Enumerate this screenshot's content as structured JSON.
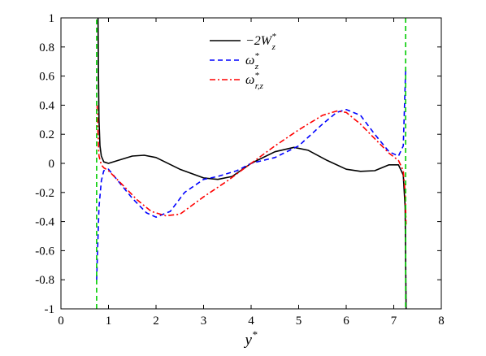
{
  "chart_data": {
    "type": "line",
    "title": "",
    "xlabel": "y*",
    "ylabel": "",
    "xlim": [
      0,
      8
    ],
    "ylim": [
      -1,
      1
    ],
    "x_ticks": [
      0,
      1,
      2,
      3,
      4,
      5,
      6,
      7,
      8
    ],
    "y_ticks": [
      -1,
      -0.8,
      -0.6,
      -0.4,
      -0.2,
      0,
      0.2,
      0.4,
      0.6,
      0.8,
      1
    ],
    "x_tick_labels": [
      "0",
      "1",
      "2",
      "3",
      "4",
      "5",
      "6",
      "7",
      "8"
    ],
    "y_tick_labels": [
      "-1",
      "-0.8",
      "-0.6",
      "-0.4",
      "-0.2",
      "0",
      "0.2",
      "0.4",
      "0.6",
      "0.8",
      "1"
    ],
    "grid": false,
    "legend_position": "top-center",
    "series": [
      {
        "name": "−2W*z",
        "legend_main": "−2W",
        "legend_sup": "*",
        "legend_sub": "z",
        "color": "#000000",
        "dash": "solid",
        "x": [
          0.78,
          0.79,
          0.8,
          0.82,
          0.85,
          0.9,
          1.0,
          1.2,
          1.5,
          1.75,
          2.0,
          2.5,
          3.0,
          3.3,
          3.6,
          4.0,
          4.5,
          4.9,
          5.2,
          5.6,
          6.0,
          6.3,
          6.6,
          6.9,
          7.1,
          7.2,
          7.24,
          7.26
        ],
        "y": [
          1.0,
          0.6,
          0.3,
          0.12,
          0.05,
          0.01,
          0.0,
          0.02,
          0.05,
          0.056,
          0.04,
          -0.04,
          -0.1,
          -0.11,
          -0.09,
          0.0,
          0.08,
          0.11,
          0.09,
          0.02,
          -0.04,
          -0.055,
          -0.05,
          -0.01,
          -0.01,
          -0.08,
          -0.3,
          -1.0
        ]
      },
      {
        "name": "ω*z",
        "legend_main": "ω",
        "legend_sup": "*",
        "legend_sub": "z",
        "color": "#0000ff",
        "dash": "dashed",
        "x": [
          0.75,
          0.8,
          0.85,
          0.9,
          1.0,
          1.2,
          1.5,
          1.8,
          2.0,
          2.3,
          2.6,
          3.0,
          3.3,
          3.7,
          4.0,
          4.5,
          5.0,
          5.5,
          5.8,
          6.0,
          6.3,
          6.6,
          6.9,
          7.1,
          7.2,
          7.25
        ],
        "y": [
          -0.8,
          -0.3,
          -0.12,
          -0.05,
          -0.04,
          -0.12,
          -0.24,
          -0.34,
          -0.37,
          -0.33,
          -0.2,
          -0.11,
          -0.09,
          -0.05,
          0.0,
          0.04,
          0.12,
          0.27,
          0.35,
          0.37,
          0.33,
          0.2,
          0.08,
          0.05,
          0.12,
          0.64
        ]
      },
      {
        "name": "ω*r,z",
        "legend_main": "ω",
        "legend_sup": "*",
        "legend_sub": "r,z",
        "color": "#ff0000",
        "dash": "dashdot",
        "x": [
          0.76,
          0.78,
          0.8,
          0.85,
          0.9,
          1.0,
          1.3,
          1.6,
          1.9,
          2.2,
          2.5,
          3.0,
          3.5,
          4.0,
          4.5,
          5.0,
          5.5,
          5.8,
          6.0,
          6.3,
          6.6,
          6.9,
          7.1,
          7.2,
          7.24,
          7.26
        ],
        "y": [
          0.4,
          0.2,
          0.05,
          -0.01,
          -0.03,
          -0.05,
          -0.15,
          -0.25,
          -0.33,
          -0.36,
          -0.35,
          -0.23,
          -0.12,
          0.0,
          0.12,
          0.23,
          0.33,
          0.36,
          0.35,
          0.27,
          0.17,
          0.07,
          0.02,
          -0.05,
          -0.2,
          -0.42
        ]
      },
      {
        "name": "boundary",
        "color": "#00cc00",
        "dash": "dashed",
        "x": [
          0.75,
          0.75,
          7.25,
          7.25
        ],
        "y": [
          -1,
          1,
          1,
          -1
        ],
        "segments": [
          [
            0,
            1
          ],
          [
            2,
            3
          ]
        ]
      }
    ]
  }
}
